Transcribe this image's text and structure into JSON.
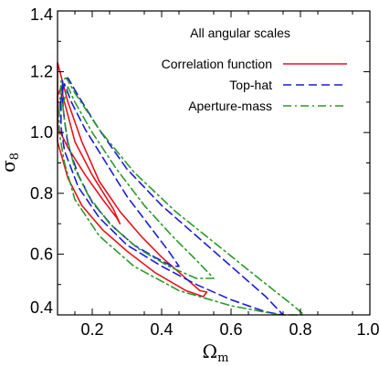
{
  "chart_data": {
    "type": "line",
    "annotation": "All angular scales",
    "xlabel": "Ω",
    "xlabel_sub": "m",
    "ylabel": "σ",
    "ylabel_sub": "8",
    "xlim": [
      0.1,
      1.0
    ],
    "ylim": [
      0.4,
      1.4
    ],
    "xticks": [
      0.2,
      0.4,
      0.6,
      0.8,
      1.0
    ],
    "xtick_labels": [
      "0.2",
      "0.4",
      "0.6",
      "0.8",
      "1.0"
    ],
    "yticks": [
      0.4,
      0.6,
      0.8,
      1.0,
      1.2,
      1.4
    ],
    "ytick_labels": [
      "0.4",
      "0.6",
      "0.8",
      "1.0",
      "1.2",
      "1.4"
    ],
    "grid": false,
    "legend_position": "top-right",
    "series": [
      {
        "name": "Correlation function",
        "color": "#e8141c",
        "dash": "solid",
        "contours": [
          [
            [
              0.1,
              1.02
            ],
            [
              0.13,
              0.95
            ],
            [
              0.18,
              0.86
            ],
            [
              0.23,
              0.78
            ],
            [
              0.27,
              0.72
            ],
            [
              0.28,
              0.7
            ],
            [
              0.26,
              0.75
            ],
            [
              0.2,
              0.86
            ],
            [
              0.15,
              0.97
            ],
            [
              0.12,
              1.1
            ],
            [
              0.11,
              1.15
            ],
            [
              0.1,
              1.12
            ]
          ],
          [
            [
              0.1,
              1.23
            ],
            [
              0.13,
              1.1
            ],
            [
              0.17,
              0.97
            ],
            [
              0.22,
              0.84
            ],
            [
              0.28,
              0.74
            ],
            [
              0.34,
              0.66
            ],
            [
              0.4,
              0.59
            ],
            [
              0.46,
              0.53
            ],
            [
              0.51,
              0.48
            ],
            [
              0.53,
              0.475
            ],
            [
              0.52,
              0.46
            ],
            [
              0.47,
              0.48
            ],
            [
              0.38,
              0.54
            ],
            [
              0.3,
              0.61
            ],
            [
              0.23,
              0.68
            ],
            [
              0.17,
              0.76
            ],
            [
              0.13,
              0.85
            ],
            [
              0.1,
              0.97
            ]
          ]
        ]
      },
      {
        "name": "Top-hat",
        "color": "#1c1cd6",
        "dash": "dashed",
        "contours": [
          [
            [
              0.115,
              1.14
            ],
            [
              0.12,
              1.16
            ],
            [
              0.14,
              1.1
            ],
            [
              0.18,
              1.01
            ],
            [
              0.24,
              0.9
            ],
            [
              0.3,
              0.79
            ],
            [
              0.36,
              0.7
            ],
            [
              0.42,
              0.61
            ],
            [
              0.45,
              0.56
            ],
            [
              0.43,
              0.56
            ],
            [
              0.38,
              0.59
            ],
            [
              0.32,
              0.63
            ],
            [
              0.26,
              0.69
            ],
            [
              0.2,
              0.77
            ],
            [
              0.16,
              0.86
            ],
            [
              0.13,
              0.96
            ],
            [
              0.12,
              1.04
            ],
            [
              0.115,
              1.1
            ]
          ],
          [
            [
              0.11,
              1.1
            ],
            [
              0.115,
              1.17
            ],
            [
              0.13,
              1.18
            ],
            [
              0.16,
              1.12
            ],
            [
              0.22,
              1.01
            ],
            [
              0.3,
              0.88
            ],
            [
              0.4,
              0.76
            ],
            [
              0.5,
              0.66
            ],
            [
              0.6,
              0.56
            ],
            [
              0.7,
              0.46
            ],
            [
              0.75,
              0.4
            ],
            [
              0.7,
              0.41
            ],
            [
              0.6,
              0.45
            ],
            [
              0.5,
              0.5
            ],
            [
              0.4,
              0.56
            ],
            [
              0.3,
              0.63
            ],
            [
              0.22,
              0.72
            ],
            [
              0.16,
              0.82
            ],
            [
              0.12,
              0.94
            ],
            [
              0.11,
              1.02
            ]
          ]
        ]
      },
      {
        "name": "Aperture-mass",
        "color": "#2a9a2a",
        "dash": "dashdot",
        "contours": [
          [
            [
              0.115,
              1.09
            ],
            [
              0.13,
              1.15
            ],
            [
              0.15,
              1.1
            ],
            [
              0.2,
              1.0
            ],
            [
              0.27,
              0.88
            ],
            [
              0.35,
              0.76
            ],
            [
              0.43,
              0.66
            ],
            [
              0.5,
              0.58
            ],
            [
              0.55,
              0.52
            ],
            [
              0.5,
              0.52
            ],
            [
              0.42,
              0.56
            ],
            [
              0.33,
              0.62
            ],
            [
              0.25,
              0.7
            ],
            [
              0.19,
              0.79
            ],
            [
              0.15,
              0.88
            ],
            [
              0.13,
              0.97
            ],
            [
              0.12,
              1.04
            ]
          ],
          [
            [
              0.105,
              1.07
            ],
            [
              0.11,
              1.17
            ],
            [
              0.125,
              1.18
            ],
            [
              0.15,
              1.13
            ],
            [
              0.22,
              1.01
            ],
            [
              0.32,
              0.87
            ],
            [
              0.44,
              0.74
            ],
            [
              0.56,
              0.63
            ],
            [
              0.68,
              0.52
            ],
            [
              0.78,
              0.43
            ],
            [
              0.81,
              0.4
            ],
            [
              0.74,
              0.4
            ],
            [
              0.6,
              0.43
            ],
            [
              0.45,
              0.48
            ],
            [
              0.32,
              0.56
            ],
            [
              0.22,
              0.66
            ],
            [
              0.15,
              0.78
            ],
            [
              0.12,
              0.9
            ],
            [
              0.105,
              1.0
            ]
          ]
        ]
      }
    ]
  }
}
